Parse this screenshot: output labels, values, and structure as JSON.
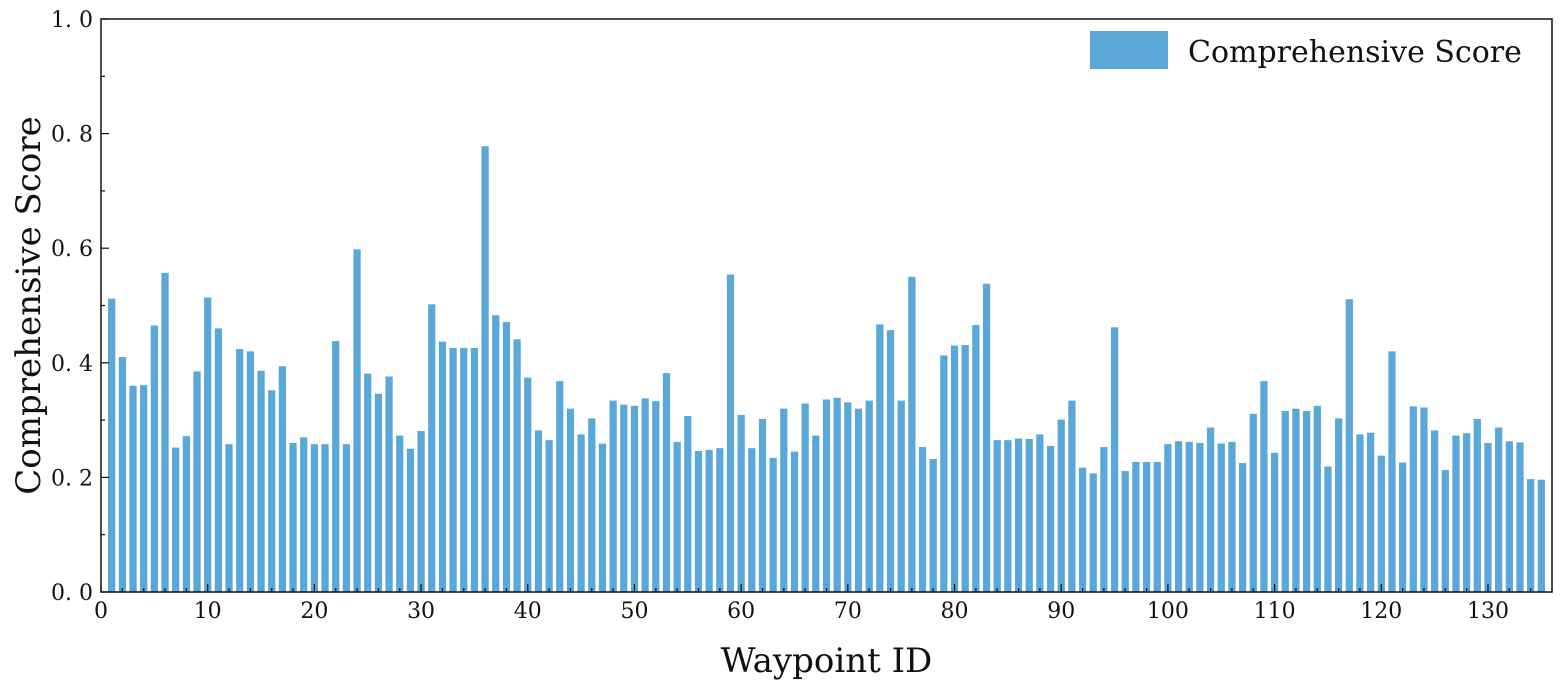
{
  "chart_data": {
    "type": "bar",
    "xlabel": "Waypoint ID",
    "ylabel": "Comprehensive Score",
    "xlim": [
      0,
      136
    ],
    "ylim": [
      0,
      1.0
    ],
    "x_ticks": [
      0,
      10,
      20,
      30,
      40,
      50,
      60,
      70,
      80,
      90,
      100,
      110,
      120,
      130
    ],
    "y_ticks": [
      0.0,
      0.2,
      0.4,
      0.6,
      0.8,
      1.0
    ],
    "y_tick_labels": [
      "0. 0",
      "0. 2",
      "0. 4",
      "0. 6",
      "0. 8",
      "1. 0"
    ],
    "legend_position": "top-right",
    "grid": false,
    "bar_color": "#59a8d8",
    "series": [
      {
        "name": "Comprehensive Score",
        "x": [
          1,
          2,
          3,
          4,
          5,
          6,
          7,
          8,
          9,
          10,
          11,
          12,
          13,
          14,
          15,
          16,
          17,
          18,
          19,
          20,
          21,
          22,
          23,
          24,
          25,
          26,
          27,
          28,
          29,
          30,
          31,
          32,
          33,
          34,
          35,
          36,
          37,
          38,
          39,
          40,
          41,
          42,
          43,
          44,
          45,
          46,
          47,
          48,
          49,
          50,
          51,
          52,
          53,
          54,
          55,
          56,
          57,
          58,
          59,
          60,
          61,
          62,
          63,
          64,
          65,
          66,
          67,
          68,
          69,
          70,
          71,
          72,
          73,
          74,
          75,
          76,
          77,
          78,
          79,
          80,
          81,
          82,
          83,
          84,
          85,
          86,
          87,
          88,
          89,
          90,
          91,
          92,
          93,
          94,
          95,
          96,
          97,
          98,
          99,
          100,
          101,
          102,
          103,
          104,
          105,
          106,
          107,
          108,
          109,
          110,
          111,
          112,
          113,
          114,
          115,
          116,
          117,
          118,
          119,
          120,
          121,
          122,
          123,
          124,
          125,
          126,
          127,
          128,
          129,
          130,
          131,
          132,
          133,
          134,
          135
        ],
        "values": [
          0.512,
          0.41,
          0.36,
          0.361,
          0.465,
          0.557,
          0.252,
          0.272,
          0.385,
          0.514,
          0.46,
          0.258,
          0.424,
          0.42,
          0.386,
          0.352,
          0.394,
          0.26,
          0.27,
          0.258,
          0.258,
          0.438,
          0.258,
          0.598,
          0.381,
          0.346,
          0.376,
          0.273,
          0.25,
          0.281,
          0.502,
          0.437,
          0.426,
          0.426,
          0.426,
          0.778,
          0.483,
          0.471,
          0.441,
          0.374,
          0.282,
          0.265,
          0.368,
          0.32,
          0.275,
          0.303,
          0.259,
          0.334,
          0.327,
          0.325,
          0.338,
          0.333,
          0.382,
          0.262,
          0.307,
          0.246,
          0.248,
          0.251,
          0.554,
          0.309,
          0.251,
          0.302,
          0.234,
          0.32,
          0.245,
          0.329,
          0.273,
          0.336,
          0.339,
          0.331,
          0.32,
          0.334,
          0.467,
          0.457,
          0.334,
          0.55,
          0.253,
          0.232,
          0.413,
          0.43,
          0.431,
          0.466,
          0.538,
          0.265,
          0.265,
          0.268,
          0.267,
          0.275,
          0.255,
          0.301,
          0.334,
          0.217,
          0.207,
          0.253,
          0.462,
          0.211,
          0.227,
          0.227,
          0.227,
          0.258,
          0.263,
          0.262,
          0.26,
          0.287,
          0.259,
          0.262,
          0.225,
          0.311,
          0.368,
          0.243,
          0.316,
          0.32,
          0.316,
          0.325,
          0.219,
          0.303,
          0.511,
          0.275,
          0.278,
          0.238,
          0.42,
          0.226,
          0.324,
          0.322,
          0.282,
          0.213,
          0.273,
          0.277,
          0.302,
          0.26,
          0.287,
          0.263,
          0.261,
          0.197,
          0.196
        ]
      }
    ]
  }
}
